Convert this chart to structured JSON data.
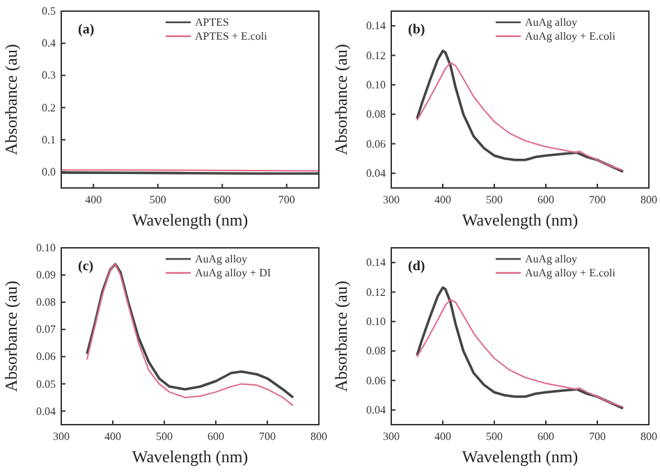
{
  "chart_data": [
    {
      "type": "line",
      "annotations": [
        "(a)"
      ],
      "xlabel": "Wavelength (nm)",
      "ylabel": "Absorbance (au)",
      "xlim": [
        350,
        750
      ],
      "xticks": [
        400,
        500,
        600,
        700
      ],
      "ylim": [
        -0.05,
        0.5
      ],
      "yticks": [
        {
          "value": 0,
          "label": "0.0"
        },
        0.1,
        0.2,
        0.3,
        0.4,
        0.5
      ],
      "legend": "top right",
      "grid": false,
      "series": [
        {
          "name": "APTES",
          "color": "#444444",
          "x": [
            350,
            450,
            550,
            650,
            750
          ],
          "values": [
            -0.002,
            -0.003,
            -0.004,
            -0.005,
            -0.005
          ]
        },
        {
          "name": "APTES + E.coli",
          "color": "#e06a88",
          "x": [
            350,
            450,
            550,
            650,
            750
          ],
          "values": [
            0.006,
            0.006,
            0.005,
            0.004,
            0.003
          ]
        }
      ]
    },
    {
      "type": "line",
      "annotations": [
        "(b)"
      ],
      "xlabel": "Wavelength (nm)",
      "ylabel": "Absorbance (au)",
      "xlim": [
        300,
        800
      ],
      "xticks": [
        300,
        400,
        500,
        600,
        700,
        800
      ],
      "ylim": [
        0.03,
        0.15
      ],
      "yticks": [
        {
          "value": 0.04,
          "label": "0.04"
        },
        {
          "value": 0.06,
          "label": "0.06"
        },
        {
          "value": 0.08,
          "label": "0.08"
        },
        {
          "value": 0.1,
          "label": "0.10"
        },
        {
          "value": 0.12,
          "label": "0.12"
        },
        {
          "value": 0.14,
          "label": "0.14"
        }
      ],
      "legend": "top right",
      "grid": false,
      "series": [
        {
          "name": "AuAg alloy",
          "color": "#444444",
          "x": [
            350,
            360,
            375,
            390,
            400,
            405,
            415,
            425,
            440,
            460,
            480,
            500,
            520,
            540,
            560,
            580,
            600,
            630,
            660,
            680,
            700,
            725,
            750
          ],
          "values": [
            0.077,
            0.088,
            0.103,
            0.117,
            0.123,
            0.122,
            0.113,
            0.098,
            0.08,
            0.065,
            0.057,
            0.052,
            0.05,
            0.049,
            0.049,
            0.051,
            0.052,
            0.053,
            0.054,
            0.051,
            0.049,
            0.045,
            0.041
          ]
        },
        {
          "name": "AuAg alloy + E.coli",
          "color": "#e06a88",
          "x": [
            350,
            370,
            390,
            405,
            415,
            425,
            440,
            460,
            480,
            500,
            530,
            560,
            600,
            630,
            660,
            665,
            680,
            700,
            725,
            750
          ],
          "values": [
            0.076,
            0.088,
            0.101,
            0.111,
            0.115,
            0.113,
            0.104,
            0.092,
            0.083,
            0.075,
            0.067,
            0.062,
            0.058,
            0.056,
            0.054,
            0.055,
            0.052,
            0.049,
            0.045,
            0.042
          ]
        }
      ]
    },
    {
      "type": "line",
      "annotations": [
        "(c)"
      ],
      "xlabel": "Wavelength (nm)",
      "ylabel": "Absorbance (au)",
      "xlim": [
        300,
        800
      ],
      "xticks": [
        300,
        400,
        500,
        600,
        700,
        800
      ],
      "ylim": [
        0.035,
        0.1
      ],
      "yticks": [
        {
          "value": 0.04,
          "label": "0.04"
        },
        {
          "value": 0.05,
          "label": "0.05"
        },
        {
          "value": 0.06,
          "label": "0.06"
        },
        {
          "value": 0.07,
          "label": "0.07"
        },
        {
          "value": 0.08,
          "label": "0.08"
        },
        {
          "value": 0.09,
          "label": "0.09"
        },
        {
          "value": 0.1,
          "label": "0.10"
        }
      ],
      "legend": "top right",
      "grid": false,
      "series": [
        {
          "name": "AuAg alloy",
          "color": "#444444",
          "x": [
            350,
            365,
            380,
            395,
            405,
            415,
            430,
            450,
            470,
            490,
            510,
            540,
            570,
            600,
            630,
            650,
            680,
            700,
            730,
            750
          ],
          "values": [
            0.061,
            0.072,
            0.084,
            0.092,
            0.094,
            0.091,
            0.08,
            0.067,
            0.058,
            0.052,
            0.049,
            0.048,
            0.049,
            0.051,
            0.054,
            0.0545,
            0.0535,
            0.052,
            0.048,
            0.045
          ]
        },
        {
          "name": "AuAg alloy + DI",
          "color": "#e06a88",
          "x": [
            350,
            365,
            380,
            395,
            405,
            415,
            430,
            450,
            470,
            490,
            510,
            540,
            570,
            600,
            630,
            650,
            680,
            700,
            730,
            750
          ],
          "values": [
            0.059,
            0.071,
            0.083,
            0.092,
            0.094,
            0.09,
            0.079,
            0.065,
            0.055,
            0.05,
            0.047,
            0.045,
            0.0455,
            0.047,
            0.049,
            0.05,
            0.0495,
            0.048,
            0.045,
            0.042
          ]
        }
      ]
    },
    {
      "type": "line",
      "annotations": [
        "(d)"
      ],
      "xlabel": "Wavelength (nm)",
      "ylabel": "Absorbance (au)",
      "xlim": [
        300,
        800
      ],
      "xticks": [
        300,
        400,
        500,
        600,
        700,
        800
      ],
      "ylim": [
        0.03,
        0.15
      ],
      "yticks": [
        {
          "value": 0.04,
          "label": "0.04"
        },
        {
          "value": 0.06,
          "label": "0.06"
        },
        {
          "value": 0.08,
          "label": "0.08"
        },
        {
          "value": 0.1,
          "label": "0.10"
        },
        {
          "value": 0.12,
          "label": "0.12"
        },
        {
          "value": 0.14,
          "label": "0.14"
        }
      ],
      "legend": "top right",
      "grid": false,
      "series": [
        {
          "name": "AuAg alloy",
          "color": "#444444",
          "x": [
            350,
            360,
            375,
            390,
            400,
            405,
            415,
            425,
            440,
            460,
            480,
            500,
            520,
            540,
            560,
            580,
            600,
            630,
            660,
            680,
            700,
            725,
            750
          ],
          "values": [
            0.077,
            0.088,
            0.103,
            0.117,
            0.123,
            0.122,
            0.113,
            0.098,
            0.08,
            0.065,
            0.057,
            0.052,
            0.05,
            0.049,
            0.049,
            0.051,
            0.052,
            0.053,
            0.054,
            0.051,
            0.049,
            0.045,
            0.041
          ]
        },
        {
          "name": "AuAg alloy + E.coli",
          "color": "#e06a88",
          "x": [
            350,
            370,
            390,
            405,
            415,
            425,
            440,
            460,
            480,
            500,
            530,
            560,
            600,
            630,
            660,
            665,
            680,
            700,
            725,
            750
          ],
          "values": [
            0.076,
            0.088,
            0.101,
            0.111,
            0.115,
            0.113,
            0.104,
            0.092,
            0.083,
            0.075,
            0.067,
            0.062,
            0.058,
            0.056,
            0.054,
            0.055,
            0.052,
            0.049,
            0.045,
            0.042
          ]
        }
      ]
    }
  ]
}
